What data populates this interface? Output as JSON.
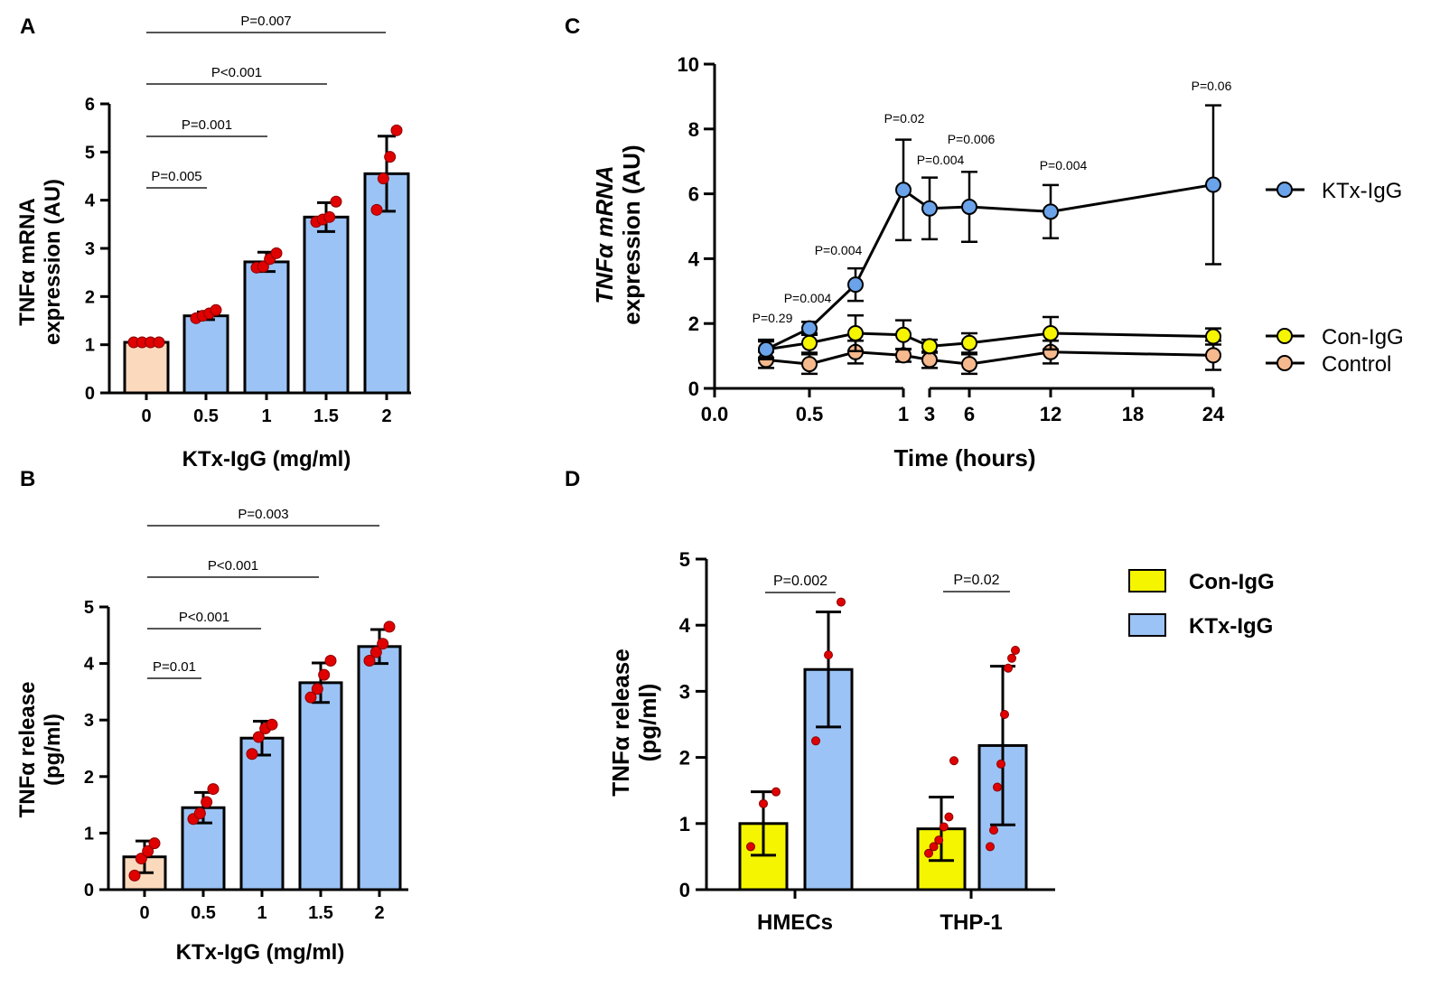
{
  "chart_data": [
    {
      "panel": "A",
      "type": "bar",
      "xlabel": "KTx-IgG (mg/ml)",
      "ylabel_lines": [
        "TNFα mRNA",
        "expression (AU)"
      ],
      "ylim": [
        0,
        6
      ],
      "yticks": [
        "0",
        "1",
        "2",
        "3",
        "4",
        "5",
        "6"
      ],
      "categories": [
        "0",
        "0.5",
        "1",
        "1.5",
        "2"
      ],
      "values": [
        1.05,
        1.6,
        2.72,
        3.65,
        4.55
      ],
      "errors": [
        0.0,
        0.08,
        0.2,
        0.3,
        0.78
      ],
      "colors": [
        "#fbd9bd",
        "#9cc3f5",
        "#9cc3f5",
        "#9cc3f5",
        "#9cc3f5"
      ],
      "points": [
        [
          1.05,
          1.05,
          1.05,
          1.05
        ],
        [
          1.55,
          1.6,
          1.65,
          1.72
        ],
        [
          2.6,
          2.62,
          2.78,
          2.9
        ],
        [
          3.55,
          3.6,
          3.65,
          3.97
        ],
        [
          3.8,
          4.45,
          4.9,
          5.45
        ]
      ],
      "comparisons": [
        {
          "label": "P=0.005",
          "from": 0,
          "to": 1
        },
        {
          "label": "P=0.001",
          "from": 0,
          "to": 2
        },
        {
          "label": "P<0.001",
          "from": 0,
          "to": 3
        },
        {
          "label": "P=0.007",
          "from": 0,
          "to": 4
        }
      ]
    },
    {
      "panel": "B",
      "type": "bar",
      "xlabel": "KTx-IgG (mg/ml)",
      "ylabel_lines": [
        "TNFα release",
        "(pg/ml)"
      ],
      "ylim": [
        0,
        5
      ],
      "yticks": [
        "0",
        "1",
        "2",
        "3",
        "4",
        "5"
      ],
      "categories": [
        "0",
        "0.5",
        "1",
        "1.5",
        "2"
      ],
      "values": [
        0.58,
        1.45,
        2.68,
        3.66,
        4.3
      ],
      "errors": [
        0.28,
        0.27,
        0.3,
        0.35,
        0.3
      ],
      "colors": [
        "#fbd9bd",
        "#9cc3f5",
        "#9cc3f5",
        "#9cc3f5",
        "#9cc3f5"
      ],
      "points": [
        [
          0.25,
          0.55,
          0.68,
          0.82
        ],
        [
          1.25,
          1.35,
          1.55,
          1.78
        ],
        [
          2.4,
          2.7,
          2.85,
          2.92
        ],
        [
          3.4,
          3.55,
          3.8,
          4.05
        ],
        [
          4.05,
          4.2,
          4.35,
          4.65
        ]
      ],
      "comparisons": [
        {
          "label": "P=0.01",
          "from": 0,
          "to": 1
        },
        {
          "label": "P<0.001",
          "from": 0,
          "to": 2
        },
        {
          "label": "P<0.001",
          "from": 0,
          "to": 3
        },
        {
          "label": "P=0.003",
          "from": 0,
          "to": 4
        }
      ]
    },
    {
      "panel": "C",
      "type": "line",
      "xlabel": "Time (hours)",
      "ylabel_lines": [
        "TNFα mRNA",
        "expression (AU)"
      ],
      "ylim": [
        0,
        10
      ],
      "yticks": [
        "0",
        "2",
        "4",
        "6",
        "8",
        "10"
      ],
      "xticks": [
        "0.0",
        "0.5",
        "1",
        "3",
        "6",
        "12",
        "18",
        "24"
      ],
      "x": [
        0.25,
        0.5,
        0.75,
        1,
        3,
        6,
        12,
        24
      ],
      "series": [
        {
          "name": "KTx-IgG",
          "color": "#6aa3ea",
          "values": [
            1.2,
            1.85,
            3.2,
            6.12,
            5.55,
            5.6,
            5.45,
            6.28
          ],
          "errors": [
            0.25,
            0.2,
            0.5,
            1.55,
            0.95,
            1.08,
            0.82,
            2.45
          ]
        },
        {
          "name": "Con-IgG",
          "color": "#f5f500",
          "values": [
            1.2,
            1.4,
            1.7,
            1.65,
            1.3,
            1.4,
            1.7,
            1.6
          ],
          "errors": [
            0.3,
            0.3,
            0.55,
            0.45,
            0.2,
            0.3,
            0.5,
            0.25
          ]
        },
        {
          "name": "Control",
          "color": "#f6b98d",
          "values": [
            0.88,
            0.75,
            1.12,
            1.02,
            0.88,
            0.75,
            1.12,
            1.02
          ],
          "errors": [
            0.25,
            0.3,
            0.35,
            0.2,
            0.25,
            0.3,
            0.35,
            0.45
          ]
        }
      ],
      "pvalues": [
        "P=0.29",
        "P=0.004",
        "P=0.004",
        "P=0.02",
        "P=0.004",
        "P=0.006",
        "P=0.004",
        "P=0.06"
      ],
      "legend": [
        "KTx-IgG",
        "Con-IgG",
        "Control"
      ]
    },
    {
      "panel": "D",
      "type": "bar",
      "ylabel_lines": [
        "TNFα release",
        "(pg/ml)"
      ],
      "ylim": [
        0,
        5
      ],
      "yticks": [
        "0",
        "1",
        "2",
        "3",
        "4",
        "5"
      ],
      "categories": [
        "HMECs",
        "THP-1"
      ],
      "series": [
        {
          "name": "Con-IgG",
          "color": "#f5f500",
          "values": [
            1.0,
            0.92
          ],
          "errors": [
            0.48,
            0.48
          ],
          "points": [
            [
              0.65,
              1.3,
              1.48
            ],
            [
              0.55,
              0.65,
              0.75,
              0.95,
              1.1,
              1.95
            ]
          ]
        },
        {
          "name": "KTx-IgG",
          "color": "#9cc3f5",
          "values": [
            3.33,
            2.18
          ],
          "errors": [
            0.87,
            1.2
          ],
          "points": [
            [
              2.25,
              3.55,
              4.35
            ],
            [
              0.65,
              0.9,
              1.55,
              1.9,
              2.65,
              3.35,
              3.5,
              3.62
            ]
          ]
        }
      ],
      "comparisons": [
        {
          "label": "P=0.002",
          "category": 0
        },
        {
          "label": "P=0.02",
          "category": 1
        }
      ],
      "legend": [
        "Con-IgG",
        "KTx-IgG"
      ]
    }
  ]
}
